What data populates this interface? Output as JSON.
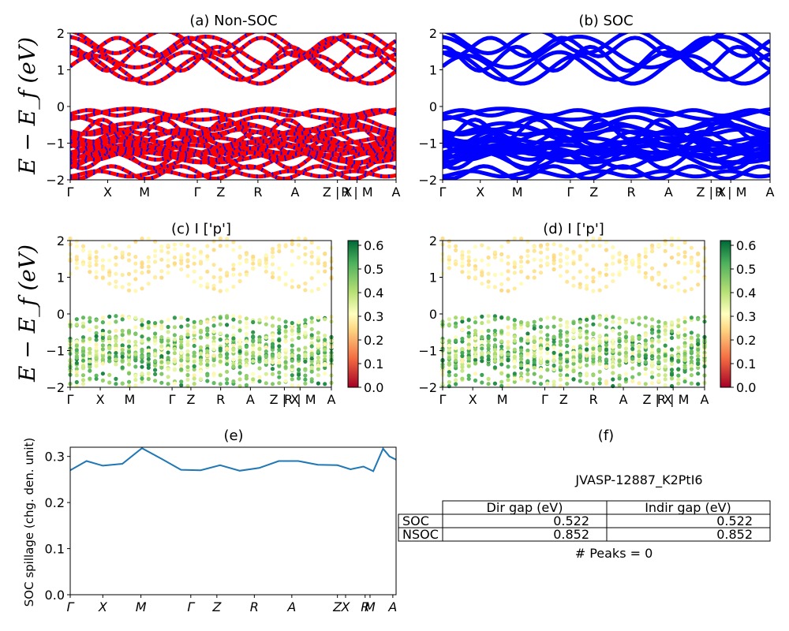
{
  "panels": {
    "a": {
      "title": "(a) Non-SOC"
    },
    "b": {
      "title": "(b) SOC"
    },
    "c": {
      "title": "(c)  I ['p']"
    },
    "d": {
      "title": "(d) I ['p']"
    },
    "e": {
      "title": "(e)"
    },
    "f": {
      "title": "(f)"
    }
  },
  "ylabel_band": "E − E_f (eV)",
  "ylabel_spillage": "SOC spillage (chg. den. unit)",
  "kpath_labels": [
    "Γ",
    "X",
    "M",
    "Γ",
    "Z",
    "R",
    "A",
    "Z | X",
    "R | M",
    "A"
  ],
  "colorbar_ticks": [
    "0.0",
    "0.1",
    "0.2",
    "0.3",
    "0.4",
    "0.5",
    "0.6"
  ],
  "colors": {
    "nonsoc_bands": "#ff0000",
    "nonsoc_alt": "#0000ff",
    "soc_bands": "#0000ff",
    "spillage_line": "#1f77b4"
  },
  "chart_data": [
    {
      "id": "a",
      "type": "line",
      "title": "(a) Non-SOC",
      "ylabel": "E − E_f (eV)",
      "ylim": [
        -2,
        2
      ],
      "yticks": [
        -2,
        -1,
        0,
        1,
        2
      ],
      "xticklabels": [
        "Γ",
        "X",
        "M",
        "Γ",
        "Z",
        "R",
        "A",
        "Z | X",
        "R | M",
        "A"
      ],
      "series_note": "conduction bands ~0.9–1.8 eV, valence bands 0 to -2 eV, red/blue dashed"
    },
    {
      "id": "b",
      "type": "line",
      "title": "(b) SOC",
      "ylim": [
        -2,
        2
      ],
      "yticks": [
        -2,
        -1,
        0,
        1,
        2
      ],
      "xticklabels": [
        "Γ",
        "X",
        "M",
        "Γ",
        "Z",
        "R",
        "A",
        "Z | X",
        "R | M",
        "A"
      ]
    },
    {
      "id": "c",
      "type": "scatter",
      "title": "(c)  I ['p']",
      "ylabel": "E − E_f (eV)",
      "ylim": [
        -2,
        2
      ],
      "colorbar": [
        0.0,
        0.6
      ]
    },
    {
      "id": "d",
      "type": "scatter",
      "title": "(d) I ['p']",
      "ylim": [
        -2,
        2
      ],
      "colorbar": [
        0.0,
        0.6
      ]
    },
    {
      "id": "e",
      "type": "line",
      "title": "(e)",
      "ylabel": "SOC spillage (chg. den. unit)",
      "ylim": [
        0.0,
        0.32
      ],
      "yticks": [
        "0.0",
        "0.1",
        "0.2",
        "0.3"
      ],
      "xticklabels": [
        "Γ",
        "X",
        "M",
        "Γ",
        "Z",
        "R",
        "A",
        "Z",
        "X",
        "R",
        "M",
        "A"
      ],
      "x": [
        0,
        0.05,
        0.1,
        0.16,
        0.22,
        0.28,
        0.34,
        0.4,
        0.46,
        0.52,
        0.58,
        0.64,
        0.7,
        0.76,
        0.82,
        0.86,
        0.9,
        0.93,
        0.96,
        0.98,
        1.0
      ],
      "values": [
        0.27,
        0.29,
        0.28,
        0.284,
        0.318,
        0.295,
        0.271,
        0.27,
        0.281,
        0.269,
        0.275,
        0.29,
        0.29,
        0.282,
        0.281,
        0.272,
        0.278,
        0.268,
        0.317,
        0.3,
        0.293
      ]
    },
    {
      "id": "f",
      "type": "table",
      "title": "(f)",
      "caption": "JVASP-12887_K2PtI6",
      "columns": [
        "Dir gap (eV)",
        "Indir gap (eV)"
      ],
      "rows": [
        {
          "label": "SOC",
          "values": [
            "0.522",
            "0.522"
          ]
        },
        {
          "label": "NSOC",
          "values": [
            "0.852",
            "0.852"
          ]
        }
      ],
      "footer": "# Peaks = 0"
    }
  ]
}
